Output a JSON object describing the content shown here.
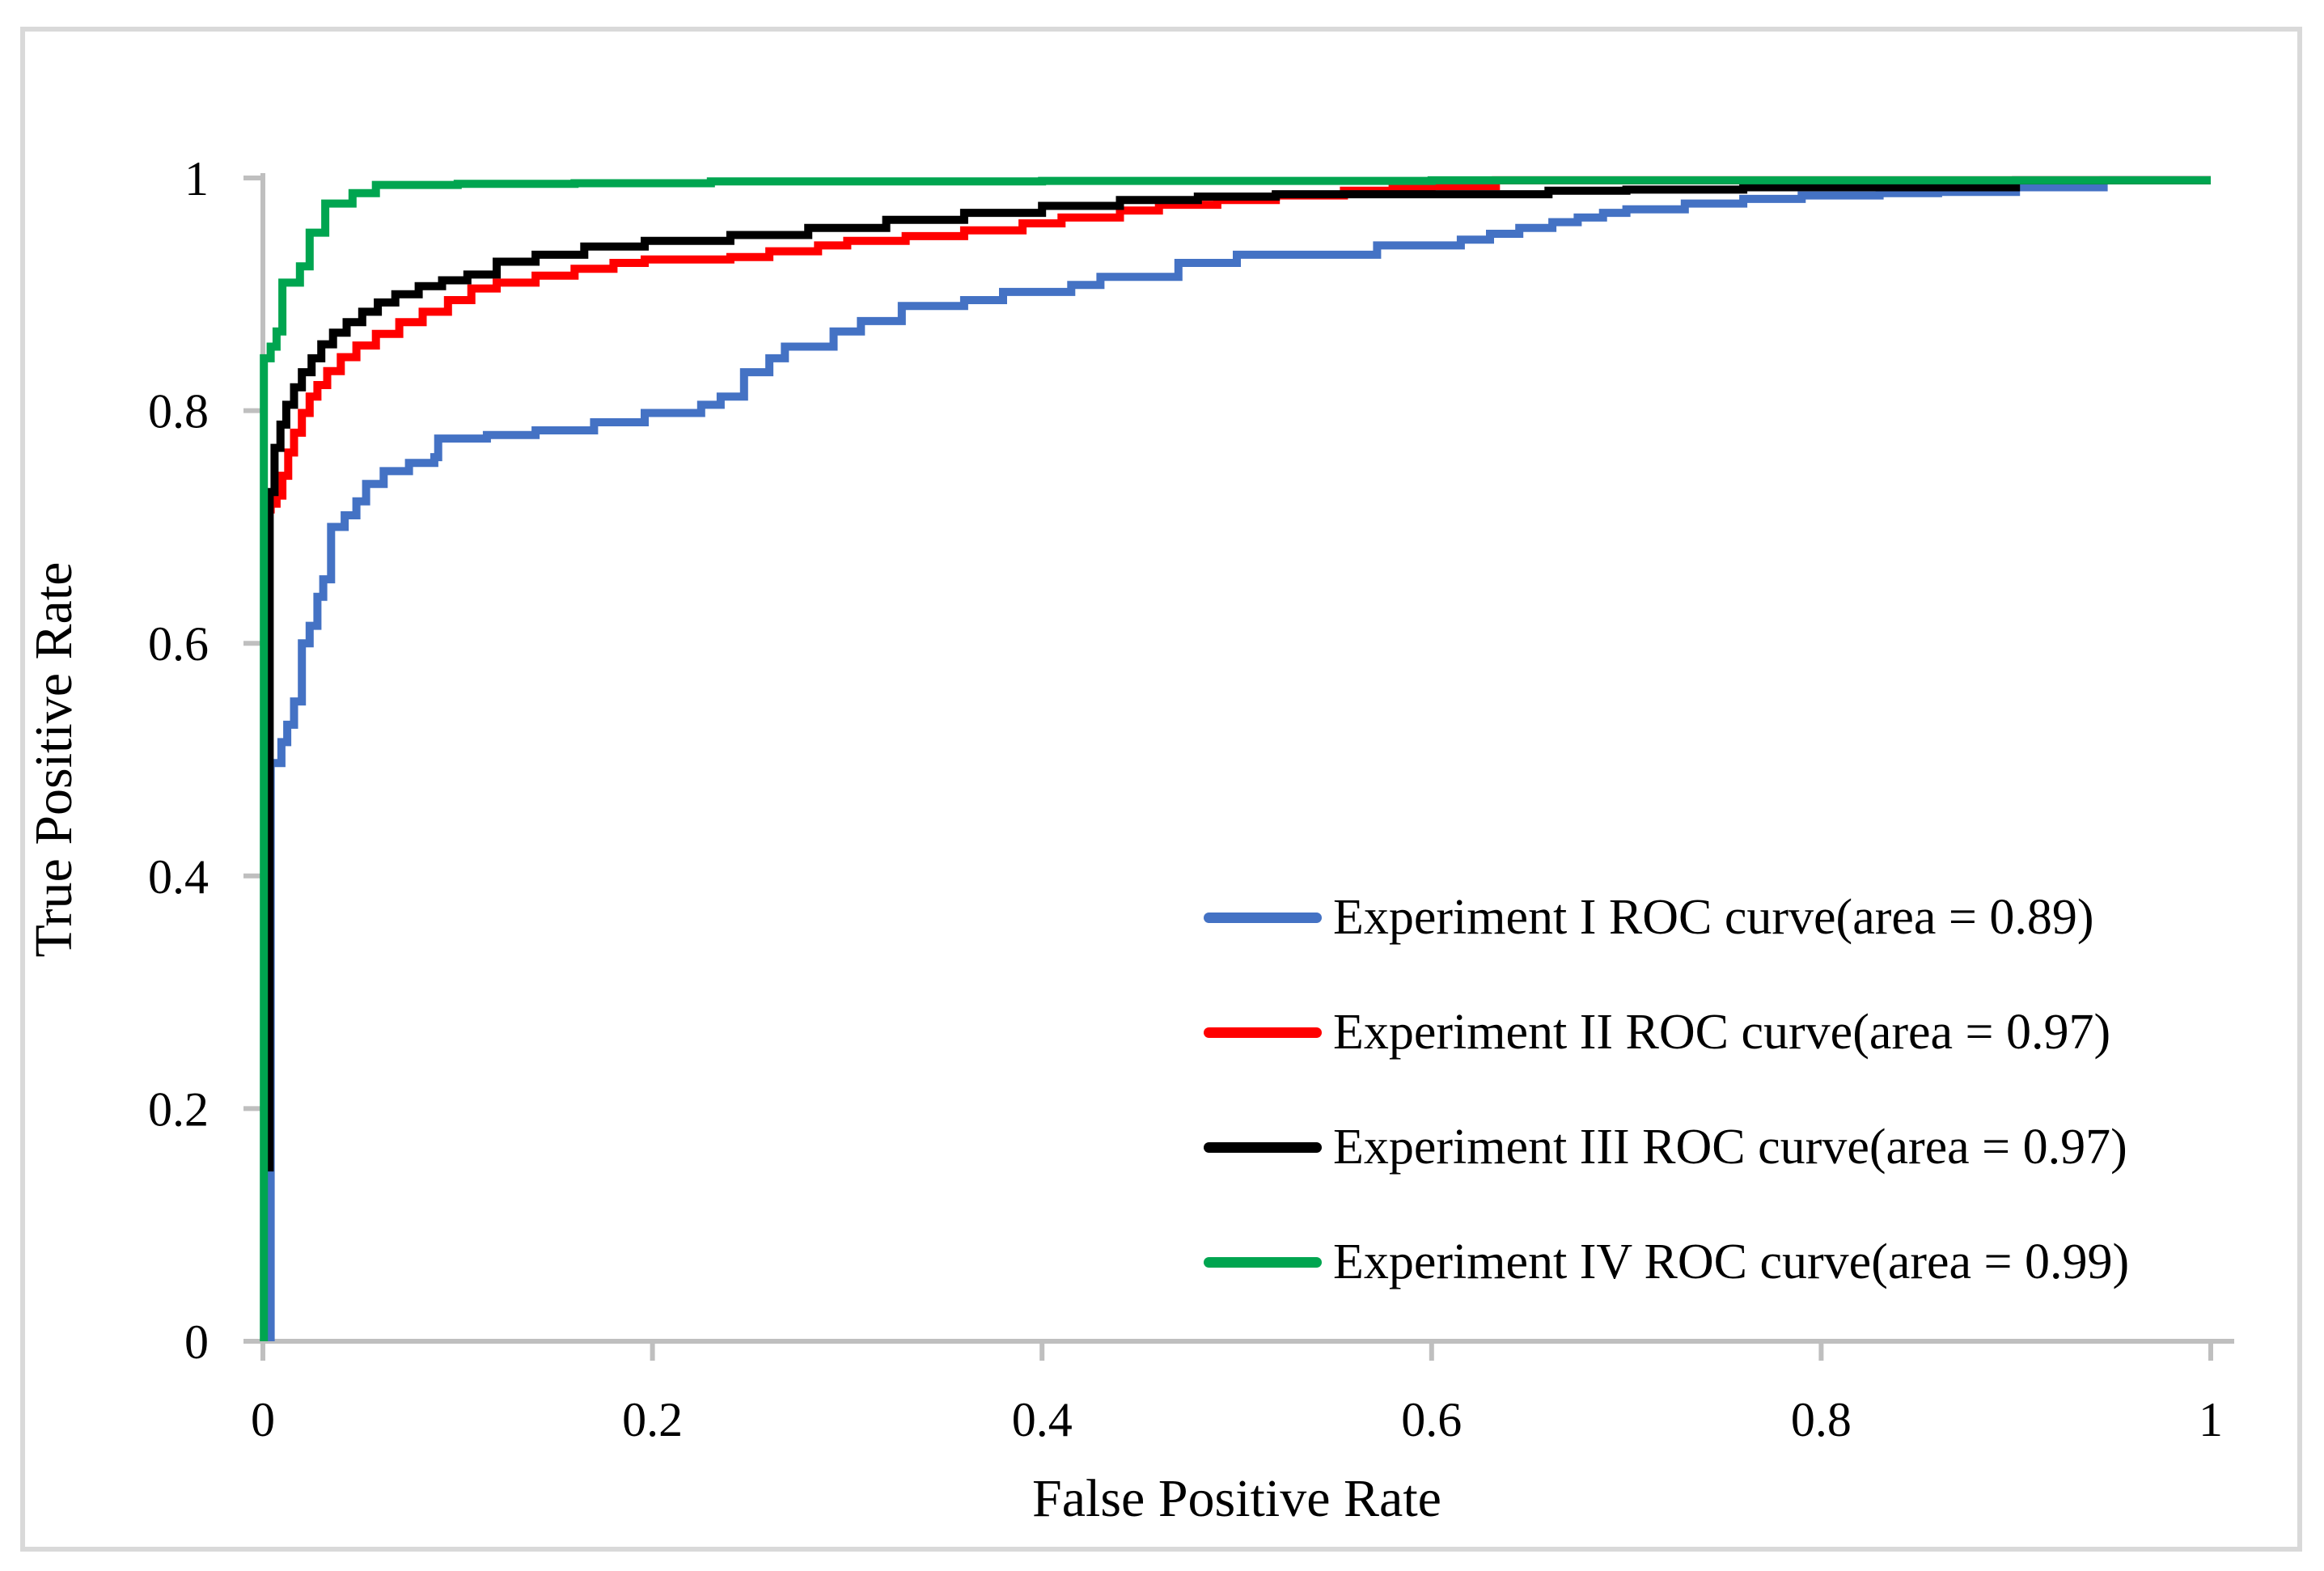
{
  "page": {
    "background": "#FFFFFF",
    "border_color": "#D9D9D9"
  },
  "chart_data": {
    "type": "line",
    "subtype": "roc-step-curves",
    "title": "",
    "xlabel": "False Positive Rate",
    "ylabel": "True Positive Rate",
    "xlim": [
      0,
      1
    ],
    "ylim": [
      0,
      1
    ],
    "x_ticks": [
      0,
      0.2,
      0.4,
      0.6,
      0.8,
      1
    ],
    "x_tick_labels": [
      "0",
      "0.2",
      "0.4",
      "0.6",
      "0.8",
      "1"
    ],
    "y_ticks": [
      0,
      0.2,
      0.4,
      0.6,
      0.8,
      1
    ],
    "y_tick_labels": [
      "0",
      "0.2",
      "0.4",
      "0.6",
      "0.8",
      "1"
    ],
    "grid": false,
    "axis_color": "#BFBFBF",
    "legend_position": "inside-lower-right",
    "series": [
      {
        "name": "Experiment I",
        "legend_label": "Experiment I ROC curve(area = 0.89)",
        "auc": 0.89,
        "color": "#4472C4",
        "points": [
          [
            0.004,
            0
          ],
          [
            0.004,
            0.497
          ],
          [
            0.0095,
            0.515
          ],
          [
            0.0125,
            0.53
          ],
          [
            0.016,
            0.55
          ],
          [
            0.02,
            0.55
          ],
          [
            0.02,
            0.6
          ],
          [
            0.024,
            0.615
          ],
          [
            0.028,
            0.64
          ],
          [
            0.031,
            0.655
          ],
          [
            0.035,
            0.655
          ],
          [
            0.035,
            0.7
          ],
          [
            0.042,
            0.71
          ],
          [
            0.048,
            0.722
          ],
          [
            0.053,
            0.737
          ],
          [
            0.062,
            0.748
          ],
          [
            0.075,
            0.755
          ],
          [
            0.088,
            0.76
          ],
          [
            0.09,
            0.776
          ],
          [
            0.115,
            0.779
          ],
          [
            0.14,
            0.783
          ],
          [
            0.17,
            0.79
          ],
          [
            0.196,
            0.798
          ],
          [
            0.225,
            0.805
          ],
          [
            0.235,
            0.812
          ],
          [
            0.247,
            0.833
          ],
          [
            0.26,
            0.845
          ],
          [
            0.268,
            0.855
          ],
          [
            0.293,
            0.868
          ],
          [
            0.307,
            0.877
          ],
          [
            0.328,
            0.89
          ],
          [
            0.36,
            0.895
          ],
          [
            0.38,
            0.902
          ],
          [
            0.415,
            0.908
          ],
          [
            0.43,
            0.915
          ],
          [
            0.47,
            0.927
          ],
          [
            0.5,
            0.934
          ],
          [
            0.572,
            0.942
          ],
          [
            0.615,
            0.947
          ],
          [
            0.63,
            0.952
          ],
          [
            0.645,
            0.957
          ],
          [
            0.662,
            0.962
          ],
          [
            0.675,
            0.966
          ],
          [
            0.688,
            0.97
          ],
          [
            0.7,
            0.973
          ],
          [
            0.73,
            0.978
          ],
          [
            0.76,
            0.982
          ],
          [
            0.79,
            0.985
          ],
          [
            0.83,
            0.987
          ],
          [
            0.86,
            0.988
          ],
          [
            0.9,
            0.992
          ],
          [
            0.945,
            0.998
          ],
          [
            1,
            0.998
          ]
        ]
      },
      {
        "name": "Experiment II",
        "legend_label": "Experiment II ROC curve(area = 0.97)",
        "auc": 0.97,
        "color": "#FF0000",
        "points": [
          [
            0.001,
            0.7
          ],
          [
            0.001,
            0.715
          ],
          [
            0.004,
            0.72
          ],
          [
            0.007,
            0.727
          ],
          [
            0.01,
            0.744
          ],
          [
            0.013,
            0.764
          ],
          [
            0.016,
            0.781
          ],
          [
            0.02,
            0.798
          ],
          [
            0.024,
            0.812
          ],
          [
            0.028,
            0.822
          ],
          [
            0.033,
            0.834
          ],
          [
            0.04,
            0.846
          ],
          [
            0.048,
            0.856
          ],
          [
            0.058,
            0.866
          ],
          [
            0.07,
            0.876
          ],
          [
            0.082,
            0.885
          ],
          [
            0.095,
            0.895
          ],
          [
            0.107,
            0.905
          ],
          [
            0.12,
            0.91
          ],
          [
            0.14,
            0.916
          ],
          [
            0.16,
            0.922
          ],
          [
            0.18,
            0.927
          ],
          [
            0.196,
            0.93
          ],
          [
            0.24,
            0.932
          ],
          [
            0.26,
            0.937
          ],
          [
            0.285,
            0.942
          ],
          [
            0.3,
            0.946
          ],
          [
            0.33,
            0.95
          ],
          [
            0.36,
            0.955
          ],
          [
            0.39,
            0.961
          ],
          [
            0.41,
            0.966
          ],
          [
            0.44,
            0.972
          ],
          [
            0.46,
            0.977
          ],
          [
            0.49,
            0.981
          ],
          [
            0.52,
            0.985
          ],
          [
            0.555,
            0.989
          ],
          [
            0.58,
            0.992
          ],
          [
            0.6,
            0.993
          ],
          [
            0.633,
            0.993
          ],
          [
            0.633,
            0.998
          ],
          [
            1,
            0.998
          ]
        ]
      },
      {
        "name": "Experiment III",
        "legend_label": "Experiment III ROC curve(area = 0.97)",
        "auc": 0.97,
        "color": "#000000",
        "points": [
          [
            0.0035,
            0.146
          ],
          [
            0.0035,
            0.73
          ],
          [
            0.006,
            0.768
          ],
          [
            0.009,
            0.788
          ],
          [
            0.012,
            0.805
          ],
          [
            0.016,
            0.82
          ],
          [
            0.02,
            0.833
          ],
          [
            0.025,
            0.845
          ],
          [
            0.03,
            0.857
          ],
          [
            0.036,
            0.867
          ],
          [
            0.043,
            0.876
          ],
          [
            0.051,
            0.885
          ],
          [
            0.059,
            0.893
          ],
          [
            0.068,
            0.9
          ],
          [
            0.08,
            0.907
          ],
          [
            0.092,
            0.912
          ],
          [
            0.105,
            0.917
          ],
          [
            0.12,
            0.928
          ],
          [
            0.14,
            0.934
          ],
          [
            0.165,
            0.941
          ],
          [
            0.196,
            0.946
          ],
          [
            0.24,
            0.951
          ],
          [
            0.28,
            0.957
          ],
          [
            0.32,
            0.964
          ],
          [
            0.36,
            0.97
          ],
          [
            0.4,
            0.976
          ],
          [
            0.44,
            0.981
          ],
          [
            0.48,
            0.984
          ],
          [
            0.52,
            0.986
          ],
          [
            0.654,
            0.986
          ],
          [
            0.66,
            0.989
          ],
          [
            0.7,
            0.99
          ],
          [
            0.76,
            0.992
          ],
          [
            0.9,
            0.992
          ],
          [
            0.9,
            0.998
          ],
          [
            1,
            0.998
          ]
        ]
      },
      {
        "name": "Experiment IV",
        "legend_label": "Experiment IV ROC curve(area = 0.99)",
        "auc": 0.99,
        "color": "#00A550",
        "points": [
          [
            0.0005,
            0
          ],
          [
            0.0005,
            0.845
          ],
          [
            0.004,
            0.855
          ],
          [
            0.007,
            0.868
          ],
          [
            0.01,
            0.91
          ],
          [
            0.019,
            0.924
          ],
          [
            0.024,
            0.953
          ],
          [
            0.032,
            0.978
          ],
          [
            0.046,
            0.987
          ],
          [
            0.058,
            0.994
          ],
          [
            0.1,
            0.995
          ],
          [
            0.16,
            0.9955
          ],
          [
            0.23,
            0.997
          ],
          [
            0.4,
            0.9975
          ],
          [
            0.6,
            0.998
          ],
          [
            1,
            0.998
          ]
        ]
      }
    ]
  }
}
